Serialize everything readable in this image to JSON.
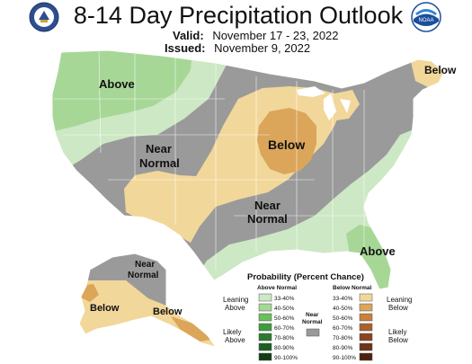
{
  "header": {
    "title": "8-14 Day Precipitation Outlook",
    "valid_label": "Valid:",
    "valid_value": "November 17 - 23, 2022",
    "issued_label": "Issued:",
    "issued_value": "November 9, 2022",
    "left_logo": "department-of-commerce-seal",
    "right_logo": "noaa-logo",
    "right_logo_text": "NOAA"
  },
  "map_labels": {
    "above_northwest": "Above",
    "near_normal_west_line1": "Near",
    "near_normal_west_line2": "Normal",
    "below_midwest": "Below",
    "near_normal_south_line1": "Near",
    "near_normal_south_line2": "Normal",
    "below_maine": "Below",
    "above_florida": "Above",
    "alaska_near_normal_line1": "Near",
    "alaska_near_normal_line2": "Normal",
    "alaska_below_west": "Below",
    "alaska_below_south": "Below"
  },
  "legend": {
    "title": "Probability (Percent Chance)",
    "above_header": "Above Normal",
    "below_header": "Below Normal",
    "near_label_line1": "Near",
    "near_label_line2": "Normal",
    "leaning_above_line1": "Leaning",
    "leaning_above_line2": "Above",
    "likely_above_line1": "Likely",
    "likely_above_line2": "Above",
    "leaning_below_line1": "Leaning",
    "leaning_below_line2": "Below",
    "likely_below_line1": "Likely",
    "likely_below_line2": "Below",
    "above_rows": [
      {
        "label": "33-40%",
        "color": "#cde8c4"
      },
      {
        "label": "40-50%",
        "color": "#a6d796"
      },
      {
        "label": "50-60%",
        "color": "#6cbf5a"
      },
      {
        "label": "60-70%",
        "color": "#3f9b3b"
      },
      {
        "label": "70-80%",
        "color": "#2c7a2e"
      },
      {
        "label": "80-90%",
        "color": "#1e5e22"
      },
      {
        "label": "90-100%",
        "color": "#123f16"
      }
    ],
    "below_rows": [
      {
        "label": "33-40%",
        "color": "#f2d79a"
      },
      {
        "label": "40-50%",
        "color": "#dba55a"
      },
      {
        "label": "50-60%",
        "color": "#c9803f"
      },
      {
        "label": "60-70%",
        "color": "#a9612c"
      },
      {
        "label": "70-80%",
        "color": "#8a4520"
      },
      {
        "label": "80-90%",
        "color": "#6e3318"
      },
      {
        "label": "90-100%",
        "color": "#4d220f"
      }
    ],
    "near_color": "#9a9a9a"
  },
  "colors": {
    "near_normal": "#9a9a9a",
    "above_33": "#cde8c4",
    "above_40": "#a6d796",
    "below_33": "#f2d79a",
    "below_40": "#dba55a",
    "border": "#ffffff"
  }
}
